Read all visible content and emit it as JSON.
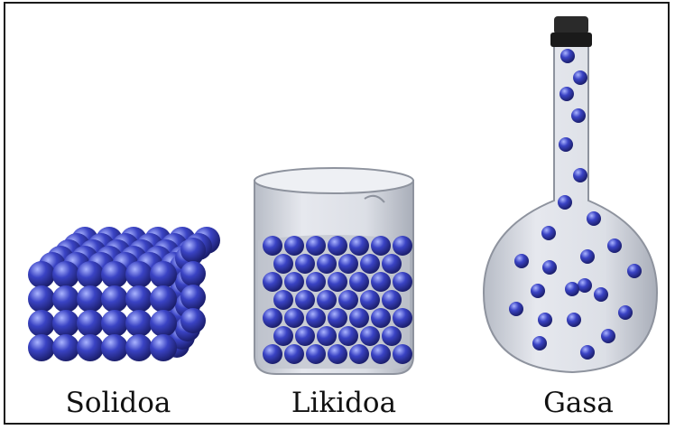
{
  "labels": {
    "solid": "Solidoa",
    "liquid": "Likidoa",
    "gas": "Gasa"
  },
  "colors": {
    "particle_dark": "#1c1f6e",
    "particle_mid": "#3a43c4",
    "particle_light": "#aab4ff",
    "glass": "#c9cdd6",
    "liquid": "#b9bdc8",
    "stopper": "#2a2a2a"
  },
  "icons": {
    "solid": "particle-cube",
    "liquid": "beaker-with-particles",
    "gas": "flask-with-particles"
  }
}
